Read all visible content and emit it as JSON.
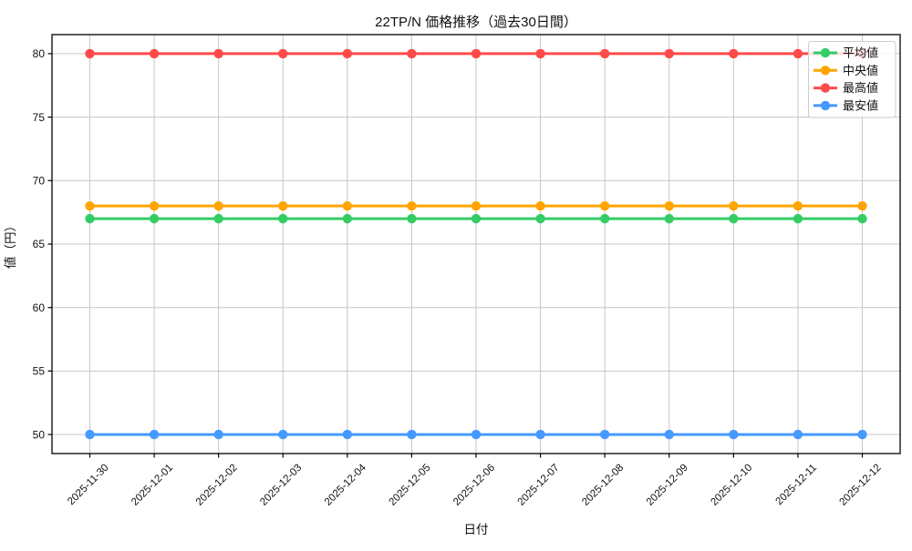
{
  "figure": {
    "title": "22TP/N 価格推移（過去30日間）",
    "xlabel": "日付",
    "ylabel": "値（円）"
  },
  "chart_data": {
    "type": "line",
    "title": "22TP/N 価格推移（過去30日間）",
    "xlabel": "日付",
    "ylabel": "値（円）",
    "x": [
      "2025-11-30",
      "2025-12-01",
      "2025-12-02",
      "2025-12-03",
      "2025-12-04",
      "2025-12-05",
      "2025-12-06",
      "2025-12-07",
      "2025-12-08",
      "2025-12-09",
      "2025-12-10",
      "2025-12-11",
      "2025-12-12"
    ],
    "series": [
      {
        "name": "平均値",
        "color": "#33CC66",
        "values": [
          67,
          67,
          67,
          67,
          67,
          67,
          67,
          67,
          67,
          67,
          67,
          67,
          67
        ]
      },
      {
        "name": "中央値",
        "color": "#FFA502",
        "values": [
          68,
          68,
          68,
          68,
          68,
          68,
          68,
          68,
          68,
          68,
          68,
          68,
          68
        ]
      },
      {
        "name": "最高値",
        "color": "#FF4A4A",
        "values": [
          80,
          80,
          80,
          80,
          80,
          80,
          80,
          80,
          80,
          80,
          80,
          80,
          80
        ]
      },
      {
        "name": "最安値",
        "color": "#4699FF",
        "values": [
          50,
          50,
          50,
          50,
          50,
          50,
          50,
          50,
          50,
          50,
          50,
          50,
          50
        ]
      }
    ],
    "ylim": [
      48.5,
      81.5
    ],
    "yticks": [
      50,
      55,
      60,
      65,
      70,
      75,
      80
    ],
    "grid": true,
    "legend_position": "upper right"
  },
  "colors": {
    "grid": "#c6c6c6",
    "spine": "#000000",
    "tick": "#000000",
    "legend_border": "#cccccc",
    "legend_bg": "#ffffff",
    "background": "#ffffff"
  }
}
